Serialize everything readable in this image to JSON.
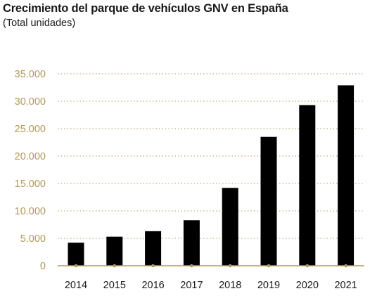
{
  "header": {
    "title": "Crecimiento del parque de vehículos GNV en España",
    "subtitle": "(Total unidades)"
  },
  "colors": {
    "bar": "#000000",
    "axis": "#b09a5a",
    "tick_label_y": "#b09a5a",
    "grid": "#b09a5a",
    "marker": "#b09a5a"
  },
  "chart_data": {
    "type": "bar",
    "title": "Crecimiento del parque de vehículos GNV en España",
    "subtitle": "(Total unidades)",
    "xlabel": "",
    "ylabel": "",
    "categories": [
      "2014",
      "2015",
      "2016",
      "2017",
      "2018",
      "2019",
      "2020",
      "2021"
    ],
    "values": [
      4200,
      5300,
      6300,
      8300,
      14200,
      23500,
      29300,
      32900
    ],
    "ylim": [
      0,
      35000
    ],
    "yticks": [
      0,
      5000,
      10000,
      15000,
      20000,
      25000,
      30000,
      35000
    ],
    "ytick_labels": [
      "0",
      "5.000",
      "10.000",
      "15.000",
      "20.000",
      "25.000",
      "30.000",
      "35.000"
    ],
    "grid": "horizontal dotted",
    "legend": "none"
  }
}
